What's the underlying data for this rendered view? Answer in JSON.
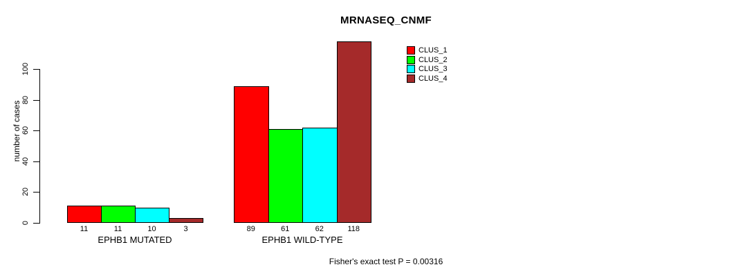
{
  "chart_data": {
    "type": "bar",
    "title": "MRNASEQ_CNMF",
    "xlabel": "",
    "ylabel": "number of cases",
    "categories": [
      "EPHB1 MUTATED",
      "EPHB1 WILD-TYPE"
    ],
    "series": [
      {
        "name": "CLUS_1",
        "color": "#FF0000",
        "values": [
          11,
          89
        ]
      },
      {
        "name": "CLUS_2",
        "color": "#00FF00",
        "values": [
          11,
          61
        ]
      },
      {
        "name": "CLUS_3",
        "color": "#00FFFF",
        "values": [
          10,
          62
        ]
      },
      {
        "name": "CLUS_4",
        "color": "#A52A2A",
        "values": [
          3,
          118
        ]
      }
    ],
    "y_ticks": [
      0,
      20,
      40,
      60,
      80,
      100
    ],
    "ylim": [
      0,
      118
    ],
    "grid": false,
    "legend_position": "top-right",
    "bar_value_labels_shown": true,
    "annotation": "Fisher's exact test P = 0.00316"
  }
}
